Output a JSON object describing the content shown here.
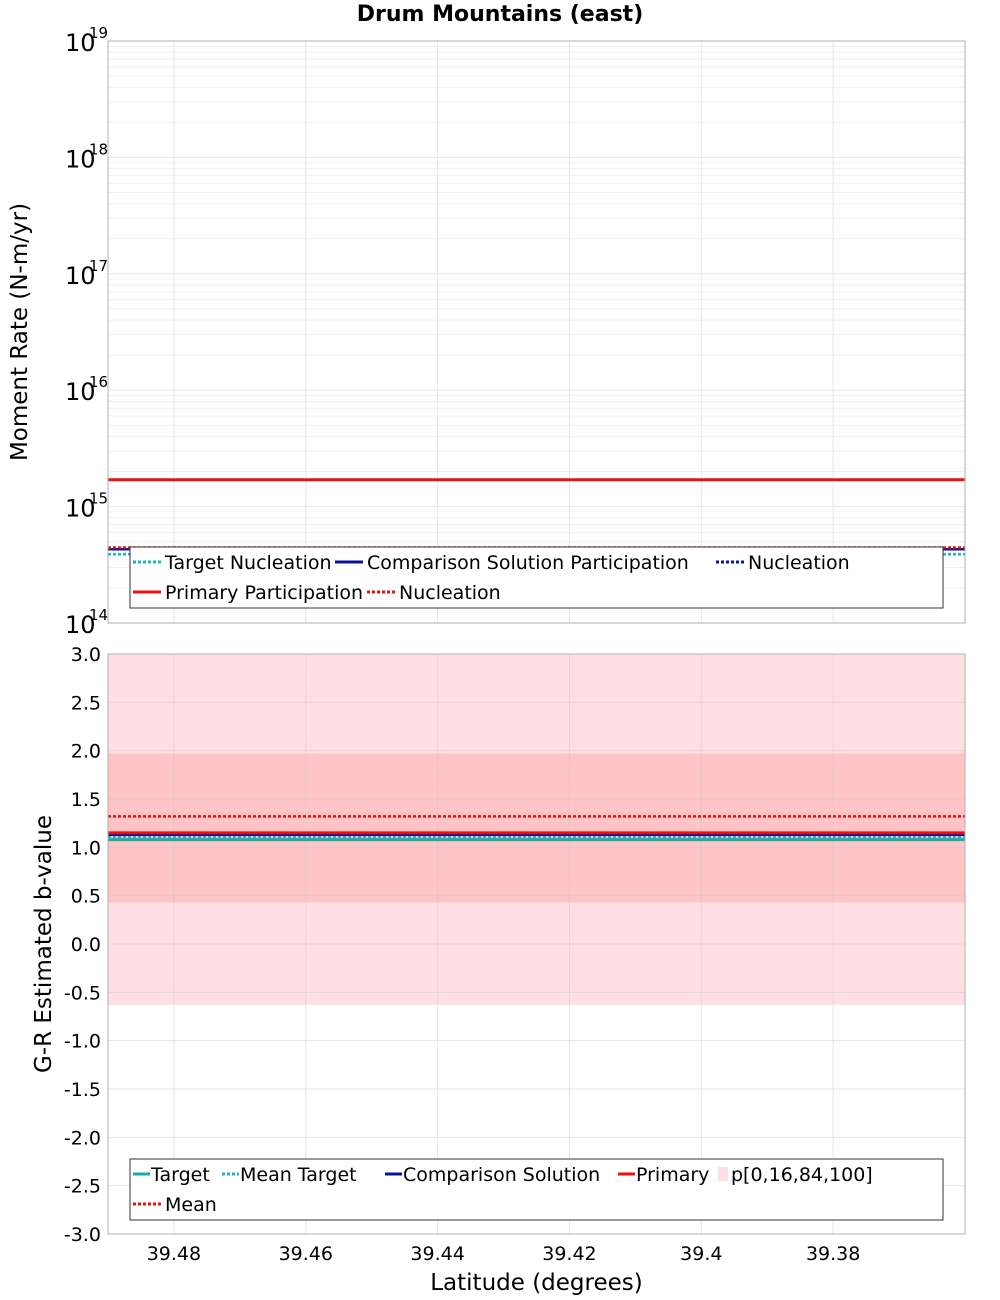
{
  "title": "Drum Mountains (east)",
  "colors": {
    "target": "#1fa8a8",
    "mean_target": "#1fb8b8",
    "comparison": "#0a10a0",
    "primary": "#e81010",
    "primary_mean": "#e81010",
    "band_outer": "#ffdfe3",
    "band_inner": "#ffc4c6",
    "grid": "#e6e6e6",
    "frame": "#b0b0b0"
  },
  "chart_data": [
    {
      "type": "line",
      "name": "moment-rate",
      "ylabel": "Moment Rate (N-m/yr)",
      "yscale": "log",
      "ylim_exp": [
        14,
        19
      ],
      "y_ticks": [
        {
          "base": "10",
          "exp": "14"
        },
        {
          "base": "10",
          "exp": "15"
        },
        {
          "base": "10",
          "exp": "16"
        },
        {
          "base": "10",
          "exp": "17"
        },
        {
          "base": "10",
          "exp": "18"
        },
        {
          "base": "10",
          "exp": "19"
        }
      ],
      "xlim": [
        39.49,
        39.36
      ],
      "series": [
        {
          "key": "target_nucleation",
          "label": "Target Nucleation",
          "style": "dotted",
          "color_key": "mean_target",
          "value": 390000000000000.0
        },
        {
          "key": "comparison_participation",
          "label": "Comparison Solution Participation",
          "style": "solid",
          "color_key": "comparison",
          "value": 430000000000000.0
        },
        {
          "key": "comparison_nucleation",
          "label": "Nucleation",
          "style": "dotted",
          "color_key": "comparison",
          "value": 440000000000000.0
        },
        {
          "key": "primary_participation",
          "label": "Primary Participation",
          "style": "solid",
          "color_key": "primary",
          "value": 1700000000000000.0
        },
        {
          "key": "primary_nucleation",
          "label": "Nucleation",
          "style": "dotted",
          "color_key": "primary_mean",
          "value": 445000000000000.0
        }
      ]
    },
    {
      "type": "line",
      "name": "b-value",
      "ylabel": "G-R Estimated b-value",
      "xlabel": "Latitude (degrees)",
      "ylim": [
        -3.0,
        3.0
      ],
      "y_ticks": [
        "3.0",
        "2.5",
        "2.0",
        "1.5",
        "1.0",
        "0.5",
        "0.0",
        "-0.5",
        "-1.0",
        "-1.5",
        "-2.0",
        "-2.5",
        "-3.0"
      ],
      "xlim": [
        39.49,
        39.36
      ],
      "x_ticks": [
        "39.48",
        "39.46",
        "39.44",
        "39.42",
        "39.4",
        "39.38"
      ],
      "bands": [
        {
          "from": -0.63,
          "to": 3.0,
          "color_key": "band_outer"
        },
        {
          "from": 0.43,
          "to": 1.97,
          "color_key": "band_inner"
        }
      ],
      "series": [
        {
          "key": "target",
          "label": "Target",
          "style": "solid",
          "color_key": "target",
          "value": 1.08
        },
        {
          "key": "mean_target",
          "label": "Mean Target",
          "style": "dotted",
          "color_key": "mean_target",
          "value": 1.11
        },
        {
          "key": "comparison",
          "label": "Comparison Solution",
          "style": "solid",
          "color_key": "comparison",
          "value": 1.13
        },
        {
          "key": "primary",
          "label": "Primary",
          "style": "solid",
          "color_key": "primary",
          "value": 1.15
        },
        {
          "key": "band",
          "label": "p[0,16,84,100]",
          "style": "band",
          "color_key": "band_outer",
          "value": null
        },
        {
          "key": "mean",
          "label": "Mean",
          "style": "dotted",
          "color_key": "primary_mean",
          "value": 1.32
        }
      ]
    }
  ]
}
